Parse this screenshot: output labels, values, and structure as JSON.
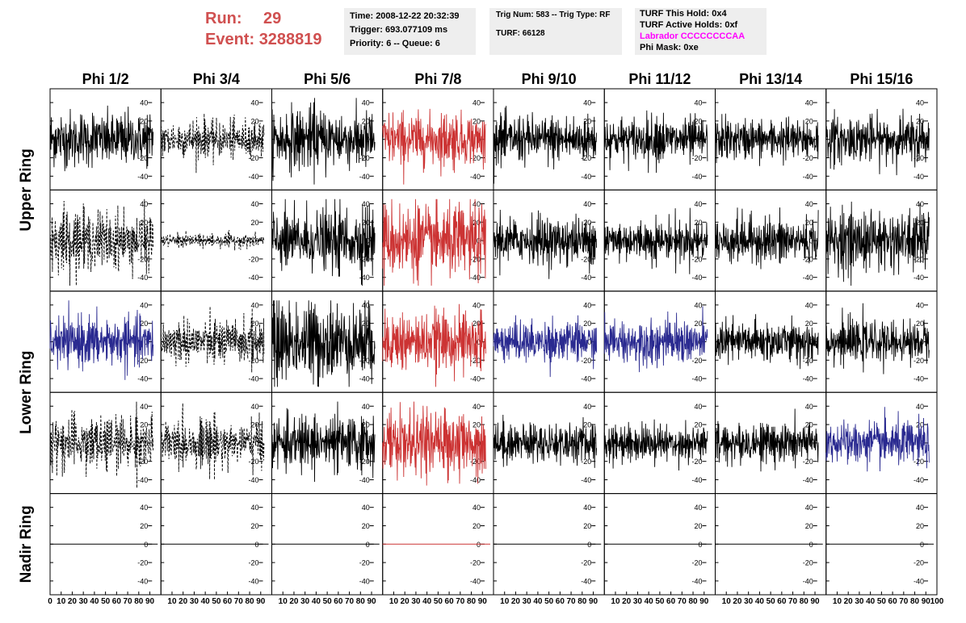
{
  "header": {
    "run_label": "Run:",
    "run_value": "29",
    "event_label": "Event:",
    "event_value": "3288819"
  },
  "info_box_1": {
    "time": "Time: 2008-12-22 20:32:39",
    "trigger": "Trigger: 693.077109 ms",
    "priority": "Priority: 6 -- Queue: 6"
  },
  "info_box_2": {
    "trig": "Trig Num: 583 -- Trig Type: RF",
    "turf": "TURF: 66128"
  },
  "info_box_3": {
    "this_hold": "TURF This Hold: 0x4",
    "active_holds": "TURF Active Holds: 0xf",
    "labrador": "Labrador CCCCCCCCAA",
    "phi_mask": "Phi Mask: 0xe"
  },
  "colors": {
    "header_red": "#d05050",
    "labrador_magenta": "#ff00ff",
    "trace_black": "#000000",
    "trace_red": "#cc3333",
    "trace_blue": "#2a2a90",
    "info_bg": "#eeeeee"
  },
  "chart_data": {
    "type": "line",
    "columns": [
      "Phi 1/2",
      "Phi 3/4",
      "Phi 5/6",
      "Phi 7/8",
      "Phi 9/10",
      "Phi 11/12",
      "Phi 13/14",
      "Phi 15/16"
    ],
    "rows": [
      {
        "label": "Upper Ring",
        "rows": 2
      },
      {
        "label": "Lower Ring",
        "rows": 2
      },
      {
        "label": "Nadir Ring",
        "rows": 1
      }
    ],
    "x_range": [
      0,
      100
    ],
    "y_range": [
      -55,
      55
    ],
    "x_tick_values": [
      0,
      10,
      20,
      30,
      40,
      50,
      60,
      70,
      80,
      90,
      100
    ],
    "x_tick_labels": [
      "0",
      "10",
      "20",
      "30",
      "40",
      "50",
      "60",
      "70",
      "80",
      "90",
      "100"
    ],
    "y_tick_values": [
      40,
      20,
      0,
      -20,
      -40
    ],
    "y_tick_labels": [
      "40",
      "20",
      "0",
      "-20",
      "-40"
    ],
    "panels": [
      [
        {
          "style": "solid",
          "color": "black",
          "amp": 16
        },
        {
          "style": "dashed",
          "color": "black",
          "amp": 11
        },
        {
          "style": "solid",
          "color": "black",
          "amp": 18
        },
        {
          "style": "solid",
          "color": "red",
          "amp": 16
        },
        {
          "style": "solid",
          "color": "black",
          "amp": 14
        },
        {
          "style": "solid",
          "color": "black",
          "amp": 13
        },
        {
          "style": "solid",
          "color": "black",
          "amp": 12
        },
        {
          "style": "solid",
          "color": "black",
          "amp": 14
        }
      ],
      [
        {
          "style": "dashed",
          "color": "black",
          "amp": 17
        },
        {
          "style": "dashed",
          "color": "black",
          "amp": 4
        },
        {
          "style": "solid",
          "color": "black",
          "amp": 19
        },
        {
          "style": "solid",
          "color": "red",
          "amp": 22
        },
        {
          "style": "solid",
          "color": "black",
          "amp": 14
        },
        {
          "style": "solid",
          "color": "black",
          "amp": 12
        },
        {
          "style": "solid",
          "color": "black",
          "amp": 14
        },
        {
          "style": "solid",
          "color": "black",
          "amp": 18
        }
      ],
      [
        {
          "style": "solid",
          "color": "blue",
          "amp": 14
        },
        {
          "style": "dashed",
          "color": "black",
          "amp": 13
        },
        {
          "style": "solid",
          "color": "black",
          "amp": 24
        },
        {
          "style": "solid",
          "color": "red",
          "amp": 17
        },
        {
          "style": "solid",
          "color": "blue",
          "amp": 12
        },
        {
          "style": "solid",
          "color": "blue",
          "amp": 13
        },
        {
          "style": "solid",
          "color": "black",
          "amp": 12
        },
        {
          "style": "solid",
          "color": "black",
          "amp": 12
        }
      ],
      [
        {
          "style": "dashed",
          "color": "black",
          "amp": 17
        },
        {
          "style": "dashed",
          "color": "black",
          "amp": 14
        },
        {
          "style": "solid",
          "color": "black",
          "amp": 16
        },
        {
          "style": "solid",
          "color": "red",
          "amp": 19
        },
        {
          "style": "solid",
          "color": "black",
          "amp": 12
        },
        {
          "style": "solid",
          "color": "black",
          "amp": 11
        },
        {
          "style": "solid",
          "color": "black",
          "amp": 12
        },
        {
          "style": "solid",
          "color": "blue",
          "amp": 13
        }
      ],
      [
        {
          "style": "flat",
          "color": "black",
          "amp": 0
        },
        {
          "style": "flat",
          "color": "black",
          "amp": 0
        },
        {
          "style": "flat",
          "color": "black",
          "amp": 0
        },
        {
          "style": "flat",
          "color": "red",
          "amp": 0
        },
        {
          "style": "flat",
          "color": "black",
          "amp": 0
        },
        {
          "style": "flat",
          "color": "black",
          "amp": 0
        },
        {
          "style": "flat",
          "color": "black",
          "amp": 0
        },
        {
          "style": "flat",
          "color": "black",
          "amp": 0
        }
      ]
    ]
  }
}
